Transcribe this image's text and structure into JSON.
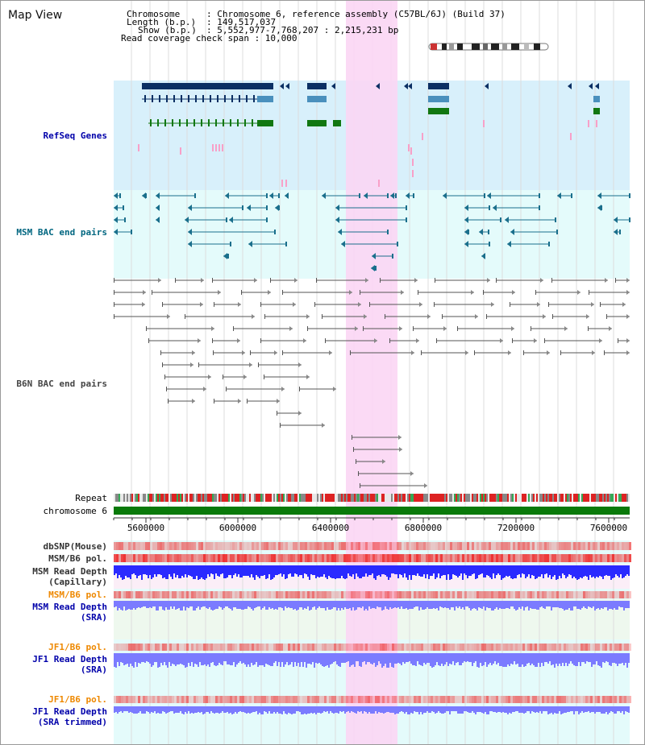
{
  "title": "Map View",
  "header": {
    "chromosome_key": "Chromosome",
    "chromosome_val": ": Chromosome 6, reference assembly (C57BL/6J) (Build 37)",
    "length_key": "Length (b.p.)",
    "length_val": ": 149,517,037",
    "show_key": "Show (b.p.)",
    "show_val": ": 5,552,977-7,768,207 : 2,215,231 bp",
    "read_cov": "Read coverage check span : 10,000"
  },
  "tracks": {
    "refseq": "RefSeq Genes",
    "msm_bac": "MSM BAC end pairs",
    "b6n_bac": "B6N BAC end pairs",
    "repeat": "Repeat",
    "chromosome": "chromosome 6",
    "dbsnp": "dbSNP(Mouse)",
    "msm_b6_pol": "MSM/B6 pol.",
    "msm_rd_cap_1": "MSM Read Depth",
    "msm_rd_cap_2": "(Capillary)",
    "msm_b6_pol_2": "MSM/B6 pol.",
    "msm_rd_sra_1": "MSM Read Depth",
    "msm_rd_sra_2": "(SRA)",
    "jf1_b6_pol": "JF1/B6 pol.",
    "jf1_rd_sra_1": "JF1 Read Depth",
    "jf1_rd_sra_2": "(SRA)",
    "jf1_b6_pol_2": "JF1/B6 pol.",
    "jf1_rd_trim_1": "JF1 Read Depth",
    "jf1_rd_trim_2": "(SRA trimmed)"
  },
  "axis": {
    "ticks": [
      "5600000",
      "6000000",
      "6400000",
      "6800000",
      "7200000",
      "7600000"
    ]
  },
  "colors": {
    "refseq_bg": "#d8f0fb",
    "msm_bg": "#e4fbfb",
    "highlight": "#fbd6f4",
    "gene_dark": "#0b2f63",
    "gene_mid": "#4a90bd",
    "gene_green": "#117711",
    "msm_pair": "#1a6f8c",
    "b6n_pair": "#555555",
    "chrom_bar": "#0a7a0a",
    "depth_blue": "#2a2aff",
    "depth_light": "#7b7bff",
    "pol_red": "#ee3333",
    "label_blue": "#0000aa",
    "label_teal": "#006680",
    "label_orange": "#ee8800",
    "label_gray": "#333333"
  }
}
